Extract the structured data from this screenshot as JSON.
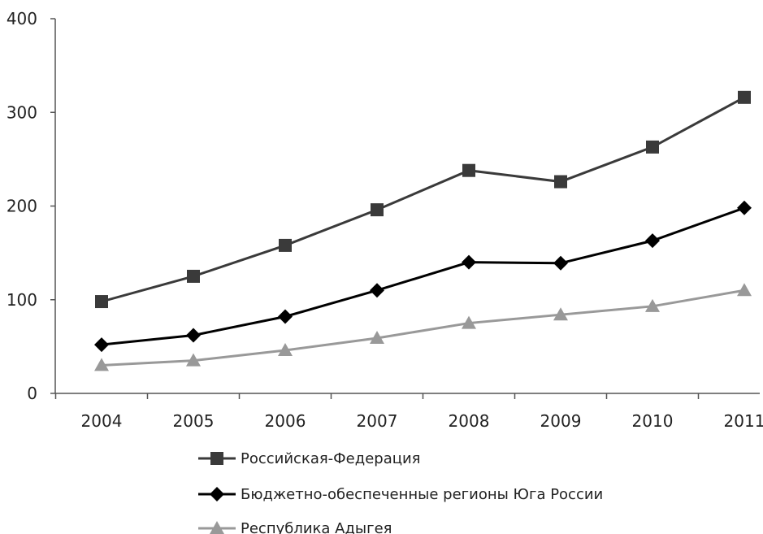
{
  "chart_data": {
    "type": "line",
    "title": "",
    "xlabel": "",
    "ylabel": "",
    "categories": [
      "2004",
      "2005",
      "2006",
      "2007",
      "2008",
      "2009",
      "2010",
      "2011"
    ],
    "ylim": [
      0,
      400
    ],
    "yticks": [
      0,
      100,
      200,
      300,
      400
    ],
    "grid": false,
    "legend_position": "bottom",
    "series": [
      {
        "name": "Российская-Федерация",
        "values": [
          98,
          125,
          158,
          196,
          238,
          226,
          263,
          316
        ],
        "color": "#3a3a3a",
        "marker": "square"
      },
      {
        "name": "Бюджетно-обеспеченные регионы Юга России",
        "values": [
          52,
          62,
          82,
          110,
          140,
          139,
          163,
          198
        ],
        "color": "#000000",
        "marker": "diamond"
      },
      {
        "name": "Республика Адыгея",
        "values": [
          30,
          35,
          46,
          59,
          75,
          84,
          93,
          110
        ],
        "color": "#999999",
        "marker": "triangle"
      }
    ]
  }
}
